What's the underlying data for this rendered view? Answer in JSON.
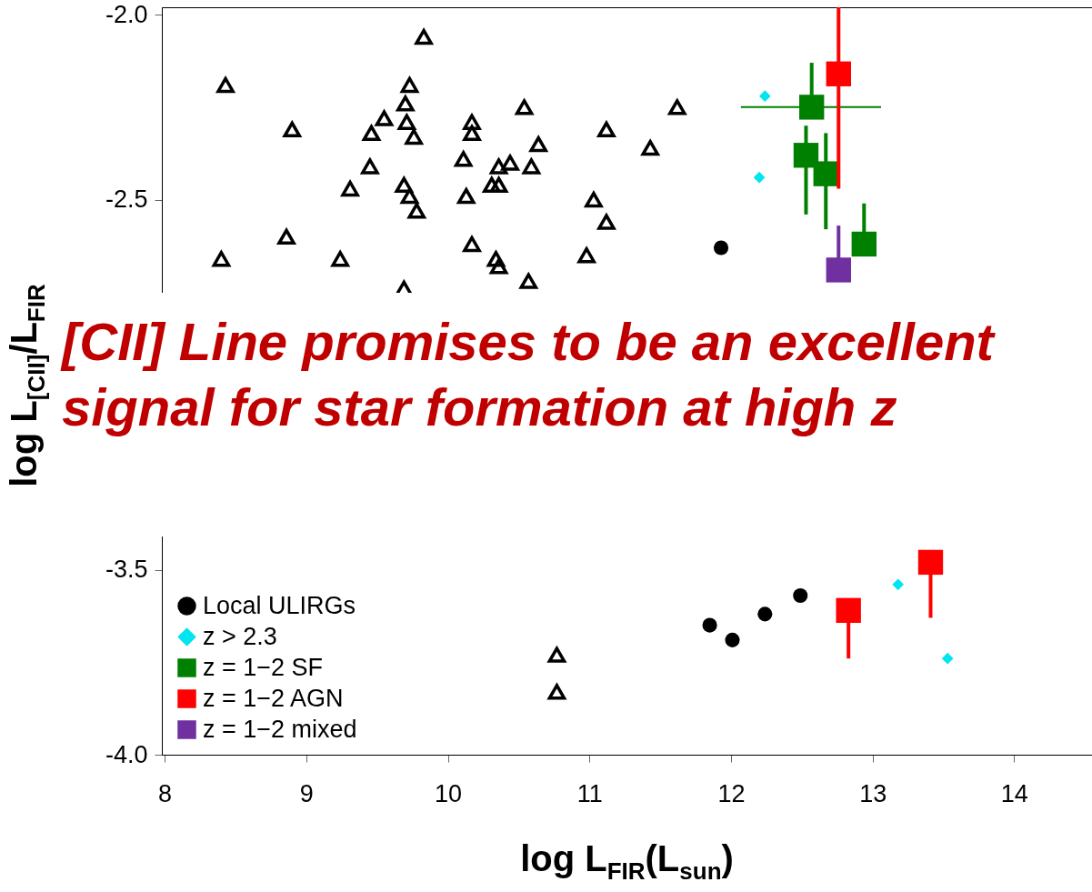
{
  "chart_data": {
    "type": "scatter",
    "xlabel": "log L$_{FIR}$(L$_{sun}$)",
    "ylabel": "log L$_{[CII]}$/L$_{FIR}$",
    "xlim": [
      7.98,
      14.55
    ],
    "xticks": [
      8,
      9,
      10,
      11,
      12,
      13,
      14
    ],
    "ylim": [
      -4.0,
      -1.98
    ],
    "yticks": [
      {
        "value": -2.0,
        "label": "-2.0"
      },
      {
        "value": -2.5,
        "label": "-2.5"
      },
      {
        "value": -3.0,
        "label": null
      },
      {
        "value": -3.5,
        "label": "-3.5"
      },
      {
        "value": -4.0,
        "label": "-4.0"
      }
    ],
    "grid": false,
    "legend": "bottom left",
    "annotations": [
      "[CII] Line promises to be an excellent signal for star formation at high z"
    ],
    "series": [
      {
        "color": "#000000",
        "marker": "triangle",
        "x": [
          8.43,
          8.9,
          9.31,
          9.46,
          9.55,
          9.45,
          9.71,
          9.7,
          9.73,
          9.76,
          9.83,
          9.69,
          9.73,
          9.78,
          10.17,
          10.17,
          10.11,
          10.13,
          10.36,
          10.44,
          10.31,
          10.36,
          10.54,
          10.59,
          10.64,
          11.12,
          11.43,
          11.03,
          11.12,
          11.62,
          8.86,
          8.4,
          9.24,
          10.17,
          10.34,
          10.36,
          10.98,
          10.57,
          9.69,
          10.77,
          10.77
        ],
        "values": [
          -2.19,
          -2.31,
          -2.47,
          -2.32,
          -2.28,
          -2.41,
          -2.29,
          -2.24,
          -2.19,
          -2.33,
          -2.06,
          -2.46,
          -2.49,
          -2.53,
          -2.29,
          -2.32,
          -2.39,
          -2.49,
          -2.41,
          -2.4,
          -2.46,
          -2.46,
          -2.25,
          -2.41,
          -2.35,
          -2.31,
          -2.36,
          -2.5,
          -2.56,
          -2.25,
          -2.6,
          -2.66,
          -2.66,
          -2.62,
          -2.66,
          -2.68,
          -2.65,
          -2.72,
          -2.74,
          -3.73,
          -3.83
        ]
      },
      {
        "name": "Local ULIRGs",
        "color": "#000000",
        "marker": "circle",
        "x": [
          11.93,
          11.85,
          12.01,
          12.24,
          12.49
        ],
        "values": [
          -2.63,
          -3.65,
          -3.69,
          -3.62,
          -3.57
        ]
      },
      {
        "name": "z > 2.3",
        "color": "#00e5ee",
        "marker": "diamond",
        "x": [
          12.24,
          12.2,
          13.18,
          13.53
        ],
        "values": [
          -2.22,
          -2.44,
          -3.54,
          -3.74
        ]
      },
      {
        "name": "z = 1−2 SF",
        "color": "#008000",
        "marker": "square",
        "x": [
          12.57,
          12.53,
          12.67,
          12.94
        ],
        "values": [
          -2.25,
          -2.38,
          -2.43,
          -2.62
        ],
        "errors": [
          [
            -2.25,
            -2.13
          ],
          [
            -2.54,
            -2.3
          ],
          [
            -2.58,
            -2.32
          ],
          [
            -2.62,
            -2.51
          ]
        ],
        "xerrors": [
          [
            12.07,
            13.06
          ],
          null,
          null,
          null
        ]
      },
      {
        "name": "z = 1−2 AGN",
        "color": "#ff0000",
        "marker": "square",
        "x": [
          12.76,
          12.83,
          13.41
        ],
        "values": [
          -2.16,
          -3.61,
          -3.48
        ],
        "errors": [
          [
            -2.47,
            -1.98
          ],
          [
            -3.74,
            -3.61
          ],
          [
            -3.63,
            -3.48
          ]
        ]
      },
      {
        "name": "z = 1−2 mixed",
        "color": "#7030a0",
        "marker": "square",
        "x": [
          12.76
        ],
        "values": [
          -2.69
        ],
        "errors": [
          [
            -2.69,
            -2.57
          ]
        ]
      }
    ]
  }
}
